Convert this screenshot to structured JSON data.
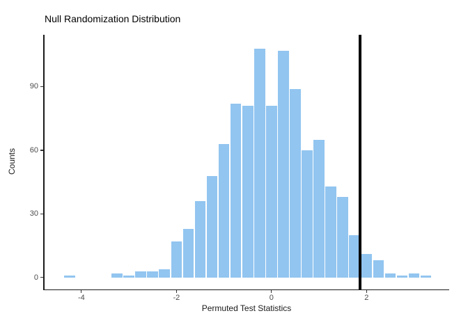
{
  "chart_data": {
    "type": "bar",
    "subtype": "histogram",
    "title": "Null Randomization Distribution",
    "xlabel": "Permuted Test Statistics",
    "ylabel": "Counts",
    "grid": "off",
    "legend": "none",
    "bin_width": 0.25,
    "bins": [
      {
        "center": -4.25,
        "count": 1
      },
      {
        "center": -4.0,
        "count": 0
      },
      {
        "center": -3.75,
        "count": 0
      },
      {
        "center": -3.5,
        "count": 0
      },
      {
        "center": -3.25,
        "count": 2
      },
      {
        "center": -3.0,
        "count": 1
      },
      {
        "center": -2.75,
        "count": 3
      },
      {
        "center": -2.5,
        "count": 3
      },
      {
        "center": -2.25,
        "count": 4
      },
      {
        "center": -2.0,
        "count": 17
      },
      {
        "center": -1.75,
        "count": 23
      },
      {
        "center": -1.5,
        "count": 36
      },
      {
        "center": -1.25,
        "count": 48
      },
      {
        "center": -1.0,
        "count": 63
      },
      {
        "center": -0.75,
        "count": 82
      },
      {
        "center": -0.5,
        "count": 81
      },
      {
        "center": -0.25,
        "count": 108
      },
      {
        "center": 0.0,
        "count": 81
      },
      {
        "center": 0.25,
        "count": 107
      },
      {
        "center": 0.5,
        "count": 89
      },
      {
        "center": 0.75,
        "count": 60
      },
      {
        "center": 1.0,
        "count": 65
      },
      {
        "center": 1.25,
        "count": 43
      },
      {
        "center": 1.5,
        "count": 38
      },
      {
        "center": 1.75,
        "count": 20
      },
      {
        "center": 2.0,
        "count": 11
      },
      {
        "center": 2.25,
        "count": 8
      },
      {
        "center": 2.5,
        "count": 2
      },
      {
        "center": 2.75,
        "count": 1
      },
      {
        "center": 3.0,
        "count": 2
      },
      {
        "center": 3.25,
        "count": 1
      }
    ],
    "total_count": 1000,
    "x_ticks": {
      "values": [
        -4,
        -2,
        0,
        2
      ],
      "labels": [
        "-4",
        "-2",
        "0",
        "2"
      ]
    },
    "y_ticks": {
      "values": [
        0,
        30,
        60,
        90
      ],
      "labels": [
        "0",
        "30",
        "60",
        "90"
      ]
    },
    "x_display_range": [
      -4.79,
      3.74
    ],
    "y_display_range": [
      -5.5,
      114.5
    ],
    "vline_x": 1.86,
    "colors": {
      "bar_fill": "#92C5F0",
      "bar_gap": "#FFFFFF",
      "vline": "#000000",
      "axis_line": "#1a1a1a",
      "tick_label": "#4d4d4d",
      "title": "#000000"
    }
  }
}
